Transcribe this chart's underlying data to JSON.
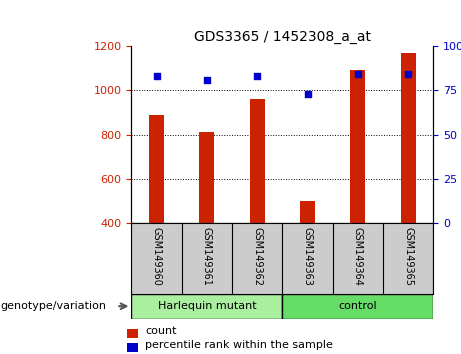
{
  "title": "GDS3365 / 1452308_a_at",
  "samples": [
    "GSM149360",
    "GSM149361",
    "GSM149362",
    "GSM149363",
    "GSM149364",
    "GSM149365"
  ],
  "bar_values": [
    890,
    810,
    960,
    500,
    1090,
    1170
  ],
  "bar_bottom": 400,
  "percentile_values": [
    83,
    81,
    83,
    73,
    84,
    84
  ],
  "bar_color": "#cc2200",
  "dot_color": "#0000cc",
  "ylim_left": [
    400,
    1200
  ],
  "ylim_right": [
    0,
    100
  ],
  "yticks_left": [
    400,
    600,
    800,
    1000,
    1200
  ],
  "yticks_right": [
    0,
    25,
    50,
    75,
    100
  ],
  "ytick_right_labels": [
    "0",
    "25",
    "50",
    "75",
    "100%"
  ],
  "grid_values": [
    600,
    800,
    1000
  ],
  "groups": [
    {
      "label": "Harlequin mutant",
      "indices": [
        0,
        1,
        2
      ],
      "color": "#aaeea0"
    },
    {
      "label": "control",
      "indices": [
        3,
        4,
        5
      ],
      "color": "#66dd66"
    }
  ],
  "group_label": "genotype/variation",
  "legend_count": "count",
  "legend_percentile": "percentile rank within the sample",
  "bg_plot": "#ffffff",
  "bg_xlabels": "#cccccc",
  "bar_width": 0.3
}
